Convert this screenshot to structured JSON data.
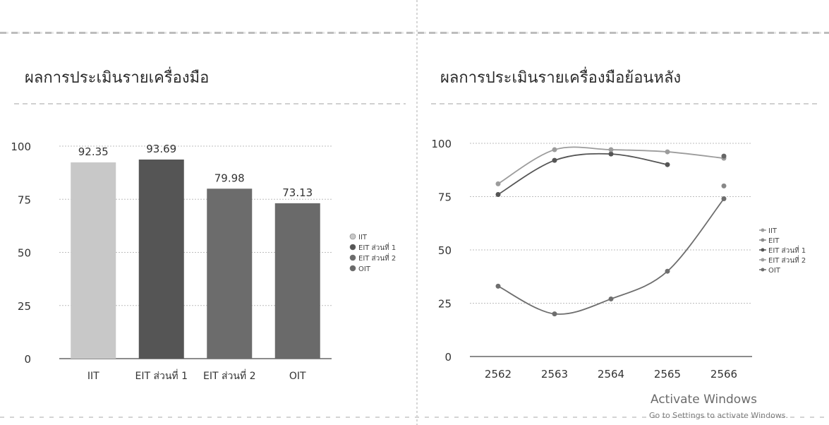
{
  "left_panel": {
    "title": "ผลการประเมินรายเครื่องมือ"
  },
  "right_panel": {
    "title": "ผลการประเมินรายเครื่องมือย้อนหลัง"
  },
  "chart_data": [
    {
      "type": "bar",
      "title": "ผลการประเมินรายเครื่องมือ",
      "categories": [
        "IIT",
        "EIT ส่วนที่ 1",
        "EIT ส่วนที่ 2",
        "OIT"
      ],
      "values": [
        92.35,
        93.69,
        79.98,
        73.13
      ],
      "data_labels": [
        "92.35",
        "93.69",
        "79.98",
        "73.13"
      ],
      "ylim": [
        0,
        100
      ],
      "yticks": [
        0,
        25,
        50,
        75,
        100
      ],
      "grid": true,
      "legend": [
        "IIT",
        "EIT ส่วนที่ 1",
        "EIT ส่วนที่ 2",
        "OIT"
      ],
      "legend_position": "right",
      "colors": [
        "#c8c8c8",
        "#555555",
        "#6c6c6c",
        "#6a6a6a"
      ]
    },
    {
      "type": "line",
      "title": "ผลการประเมินรายเครื่องมือย้อนหลัง",
      "x": [
        "2562",
        "2563",
        "2564",
        "2565",
        "2566"
      ],
      "ylim": [
        0,
        100
      ],
      "yticks": [
        0,
        25,
        50,
        75,
        100
      ],
      "grid": true,
      "legend_position": "right",
      "series": [
        {
          "name": "IIT",
          "values": [
            null,
            null,
            null,
            null,
            null
          ],
          "color": "#9a9a9a"
        },
        {
          "name": "EIT",
          "values": [
            null,
            null,
            null,
            null,
            null
          ],
          "color": "#8a8a8a"
        },
        {
          "name": "EIT ส่วนที่ 1",
          "values": [
            76,
            92,
            95,
            90,
            null
          ],
          "color": "#555555"
        },
        {
          "name": "EIT ส่วนที่ 2",
          "values": [
            81,
            97,
            97,
            96,
            93
          ],
          "color": "#9c9c9c"
        },
        {
          "name": "OIT",
          "values": [
            33,
            20,
            27,
            40,
            74
          ],
          "color": "#6e6e6e"
        }
      ],
      "extra_points": [
        {
          "x": "2566",
          "y": 80,
          "color": "#888888"
        },
        {
          "x": "2566",
          "y": 94,
          "color": "#666666"
        }
      ]
    }
  ],
  "watermark": {
    "line1": "Activate Windows",
    "line2": "Go to Settings to activate Windows."
  }
}
